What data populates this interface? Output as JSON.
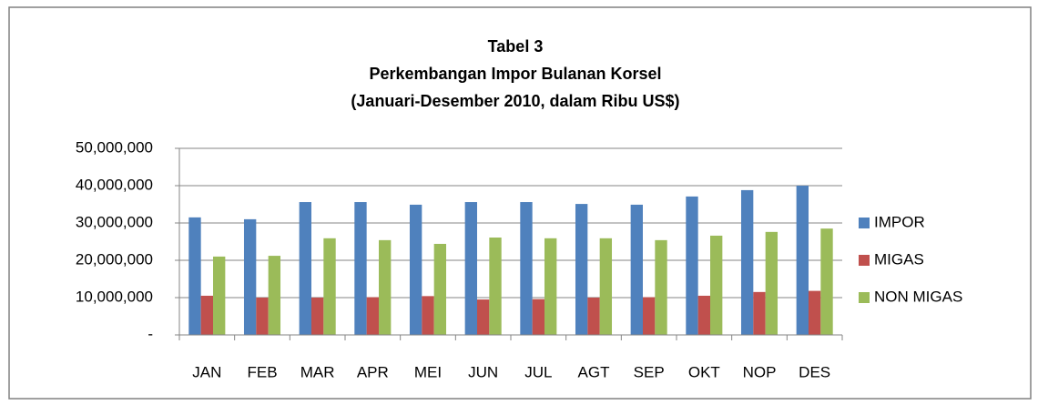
{
  "chart_data": {
    "type": "bar",
    "title": [
      "Tabel 3",
      "Perkembangan Impor Bulanan Korsel",
      "(Januari-Desember 2010, dalam Ribu US$)"
    ],
    "categories": [
      "JAN",
      "FEB",
      "MAR",
      "APR",
      "MEI",
      "JUN",
      "JUL",
      "AGT",
      "SEP",
      "OKT",
      "NOP",
      "DES"
    ],
    "series": [
      {
        "name": "IMPOR",
        "color": "#4f81bd",
        "values": [
          31500000,
          31000000,
          35600000,
          35600000,
          34900000,
          35600000,
          35600000,
          35100000,
          34900000,
          37100000,
          38800000,
          40000000
        ]
      },
      {
        "name": "MIGAS",
        "color": "#c0504d",
        "values": [
          10500000,
          10000000,
          10000000,
          10100000,
          10400000,
          9500000,
          9600000,
          10000000,
          10100000,
          10500000,
          11500000,
          11800000
        ]
      },
      {
        "name": "NON MIGAS",
        "color": "#9bbb59",
        "values": [
          21000000,
          21200000,
          25900000,
          25400000,
          24400000,
          26100000,
          25900000,
          25900000,
          25400000,
          26600000,
          27600000,
          28500000
        ]
      }
    ],
    "ylim": [
      0,
      50000000
    ],
    "yticks": [
      {
        "value": 0,
        "label": "-"
      },
      {
        "value": 10000000,
        "label": "10,000,000"
      },
      {
        "value": 20000000,
        "label": "20,000,000"
      },
      {
        "value": 30000000,
        "label": "30,000,000"
      },
      {
        "value": 40000000,
        "label": "40,000,000"
      },
      {
        "value": 50000000,
        "label": "50,000,000"
      }
    ],
    "grid": true,
    "legend": "right"
  }
}
